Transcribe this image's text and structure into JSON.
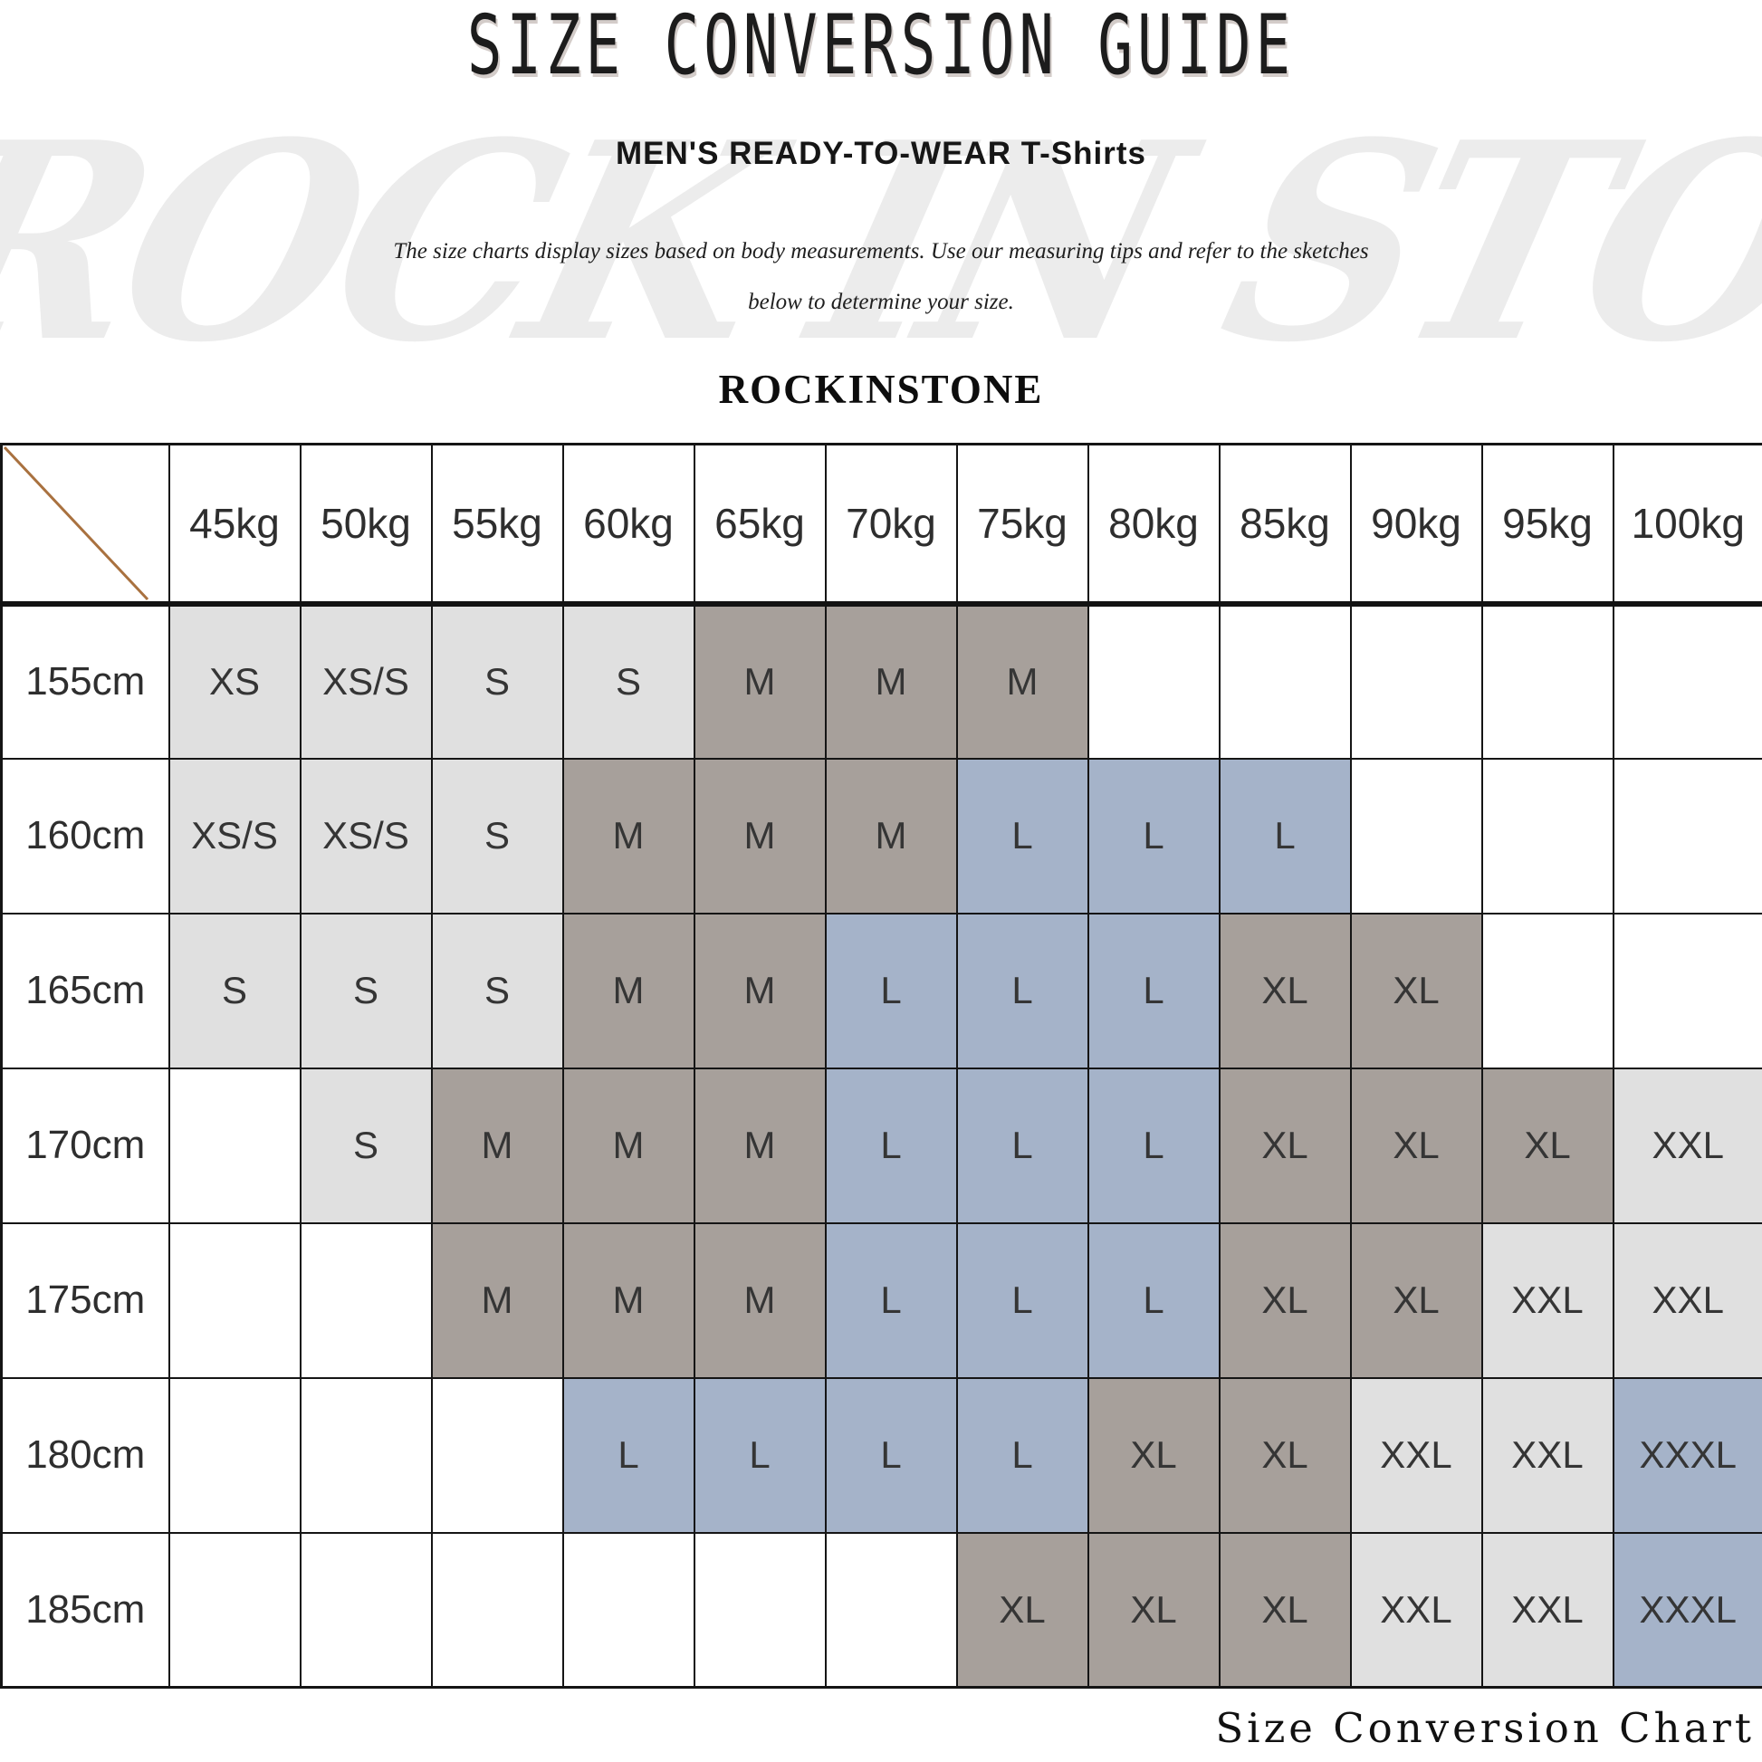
{
  "page": {
    "title": "SIZE CONVERSION GUIDE",
    "subtitle": "MEN'S READY-TO-WEAR T-Shirts",
    "description_line1": "The size charts display sizes based on body measurements.  Use our measuring tips and refer to the sketches",
    "description_line2": "below to determine your size.",
    "brand": "ROCKINSTONE",
    "watermark": "ROCK IN STONE",
    "caption": "Size Conversion Chart"
  },
  "chart_data": {
    "type": "table",
    "title": "SIZE CONVERSION GUIDE",
    "columns": [
      "45kg",
      "50kg",
      "55kg",
      "60kg",
      "65kg",
      "70kg",
      "75kg",
      "80kg",
      "85kg",
      "90kg",
      "95kg",
      "100kg"
    ],
    "rows": [
      "155cm",
      "160cm",
      "165cm",
      "170cm",
      "175cm",
      "180cm",
      "185cm"
    ],
    "cells": [
      [
        [
          "XS",
          "light"
        ],
        [
          "XS/S",
          "light"
        ],
        [
          "S",
          "light"
        ],
        [
          "S",
          "light"
        ],
        [
          "M",
          "grey"
        ],
        [
          "M",
          "grey"
        ],
        [
          "M",
          "grey"
        ],
        null,
        null,
        null,
        null,
        null
      ],
      [
        [
          "XS/S",
          "light"
        ],
        [
          "XS/S",
          "light"
        ],
        [
          "S",
          "light"
        ],
        [
          "M",
          "grey"
        ],
        [
          "M",
          "grey"
        ],
        [
          "M",
          "grey"
        ],
        [
          "L",
          "blue"
        ],
        [
          "L",
          "blue"
        ],
        [
          "L",
          "blue"
        ],
        null,
        null,
        null
      ],
      [
        [
          "S",
          "light"
        ],
        [
          "S",
          "light"
        ],
        [
          "S",
          "light"
        ],
        [
          "M",
          "grey"
        ],
        [
          "M",
          "grey"
        ],
        [
          "L",
          "blue"
        ],
        [
          "L",
          "blue"
        ],
        [
          "L",
          "blue"
        ],
        [
          "XL",
          "grey"
        ],
        [
          "XL",
          "grey"
        ],
        null,
        null
      ],
      [
        null,
        [
          "S",
          "light"
        ],
        [
          "M",
          "grey"
        ],
        [
          "M",
          "grey"
        ],
        [
          "M",
          "grey"
        ],
        [
          "L",
          "blue"
        ],
        [
          "L",
          "blue"
        ],
        [
          "L",
          "blue"
        ],
        [
          "XL",
          "grey"
        ],
        [
          "XL",
          "grey"
        ],
        [
          "XL",
          "grey"
        ],
        [
          "XXL",
          "light"
        ]
      ],
      [
        null,
        null,
        [
          "M",
          "grey"
        ],
        [
          "M",
          "grey"
        ],
        [
          "M",
          "grey"
        ],
        [
          "L",
          "blue"
        ],
        [
          "L",
          "blue"
        ],
        [
          "L",
          "blue"
        ],
        [
          "XL",
          "grey"
        ],
        [
          "XL",
          "grey"
        ],
        [
          "XXL",
          "light"
        ],
        [
          "XXL",
          "light"
        ]
      ],
      [
        null,
        null,
        null,
        [
          "L",
          "blue"
        ],
        [
          "L",
          "blue"
        ],
        [
          "L",
          "blue"
        ],
        [
          "L",
          "blue"
        ],
        [
          "XL",
          "grey"
        ],
        [
          "XL",
          "grey"
        ],
        [
          "XXL",
          "light"
        ],
        [
          "XXL",
          "light"
        ],
        [
          "XXXL",
          "blue"
        ]
      ],
      [
        null,
        null,
        null,
        null,
        null,
        null,
        [
          "XL",
          "grey"
        ],
        [
          "XL",
          "grey"
        ],
        [
          "XL",
          "grey"
        ],
        [
          "XXL",
          "light"
        ],
        [
          "XXL",
          "light"
        ],
        [
          "XXXL",
          "blue"
        ]
      ]
    ],
    "colors": {
      "light": "#e0e0e0",
      "grey": "#a7a09b",
      "blue": "#a5b3c9",
      "empty": "#ffffff",
      "diagonal_line": "#a9713f",
      "border": "#151515"
    }
  }
}
